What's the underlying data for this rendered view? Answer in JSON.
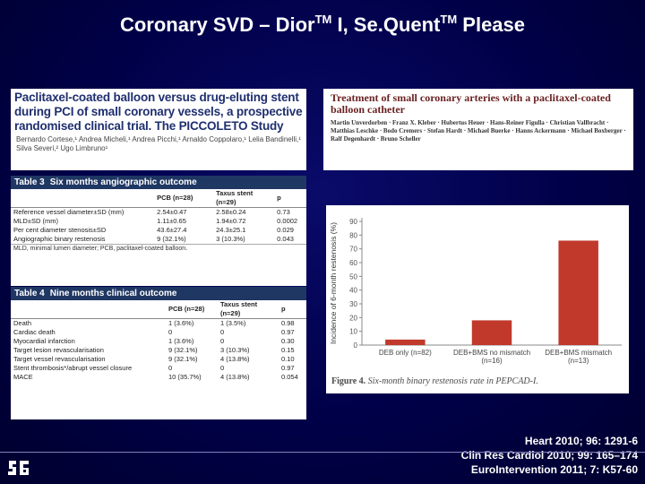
{
  "slide": {
    "title_main": "Coronary SVD – Dior",
    "title_tm1": "TM",
    "title_mid": " I, Se.Quent",
    "title_tm2": "TM",
    "title_end": " Please"
  },
  "piccoleto": {
    "title": "Paclitaxel-coated balloon versus drug-eluting stent during PCI of small coronary vessels, a prospective randomised clinical trial. The PICCOLETO Study",
    "authors": "Bernardo Cortese,¹ Andrea Micheli,¹ Andrea Picchi,¹ Arnaldo Coppolaro,¹ Lelia Bandinelli,¹ Silva Severi,² Ugo Limbruno¹"
  },
  "table3": {
    "number": "Table 3",
    "title": "Six months angiographic outcome",
    "columns": [
      "",
      "PCB (n=28)",
      "Taxus stent (n=29)",
      "p"
    ],
    "rows": [
      [
        "Reference vessel diameter±SD (mm)",
        "2.54±0.47",
        "2.58±0.24",
        "0.73"
      ],
      [
        "MLD±SD (mm)",
        "1.11±0.65",
        "1.94±0.72",
        "0.0002"
      ],
      [
        "Per cent diameter stenosis±SD",
        "43.6±27.4",
        "24.3±25.1",
        "0.029"
      ],
      [
        "Angiographic binary restenosis",
        "9 (32.1%)",
        "3 (10.3%)",
        "0.043"
      ]
    ],
    "footnote": "MLD, minimal lumen diameter; PCB, paclitaxel-coated balloon."
  },
  "table4": {
    "number": "Table 4",
    "title": "Nine months clinical outcome",
    "columns": [
      "",
      "PCB (n=28)",
      "Taxus stent (n=29)",
      "p"
    ],
    "rows": [
      [
        "Death",
        "1 (3.6%)",
        "1 (3.5%)",
        "0.98"
      ],
      [
        "Cardiac death",
        "0",
        "0",
        "0.97"
      ],
      [
        "Myocardial infarction",
        "1 (3.6%)",
        "0",
        "0.30"
      ],
      [
        "Target lesion revascularisation",
        "9 (32.1%)",
        "3 (10.3%)",
        "0.15"
      ],
      [
        "Target vessel revascularisation",
        "9 (32.1%)",
        "4 (13.8%)",
        "0.10"
      ],
      [
        "Stent thrombosis*/abrupt vessel closure",
        "0",
        "0",
        "0.97"
      ],
      [
        "MACE",
        "10 (35.7%)",
        "4 (13.8%)",
        "0.054"
      ]
    ]
  },
  "pepcad": {
    "title": "Treatment of small coronary arteries with a paclitaxel-coated balloon catheter",
    "authors": "Martin Unverdorben · Franz X. Kleber · Hubertus Heuer · Hans-Reiner Figulla · Christian Vallbracht · Matthias Leschke · Bodo Cremers · Stefan Hardt · Michael Buerke · Hanns Ackermann · Michael Boxberger · Ralf Degenhardt · Bruno Scheller"
  },
  "chart_data": {
    "type": "bar",
    "categories": [
      "DEB only (n=82)",
      "DEB+BMS no mismatch (n=16)",
      "DEB+BMS mismatch (n=13)"
    ],
    "values": [
      4,
      18,
      76
    ],
    "ylabel": "Incidence of 6-month restenosis (%)",
    "ylim": [
      0,
      90
    ],
    "yticks": [
      0,
      10,
      20,
      30,
      40,
      50,
      60,
      70,
      80,
      90
    ],
    "caption_prefix": "Figure 4.",
    "caption": "Six-month binary restenosis rate in PEPCAD-I.",
    "bar_color": "#c0392b"
  },
  "citations": [
    "Heart 2010; 96: 1291-6",
    "Clin Res Cardiol 2010; 99: 165–174",
    "EuroIntervention 2011; 7: K57-60"
  ]
}
